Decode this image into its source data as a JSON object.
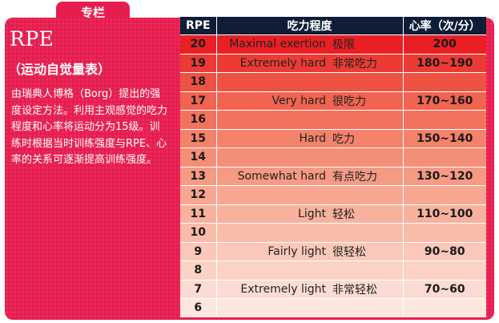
{
  "tab_label": "专栏",
  "title": "RPE",
  "subtitle": "（运动自觉量表）",
  "description": "由瑞典人博格（Borg）提出的强度设定方法。利用主观感觉的吃力程度和心率将运动分为15级。训练时根据当时训练强度与RPE、心率的关系可逐渐提高训练强度。",
  "table": {
    "headers": {
      "rpe": "RPE",
      "effort": "吃力程度",
      "heart_rate": "心率（次/分）"
    },
    "rows": [
      {
        "rpe": "20",
        "en": "Maximal exertion",
        "cn": "极限",
        "hr": "200",
        "color": "#ea1f24"
      },
      {
        "rpe": "19",
        "en": "Extremely hard",
        "cn": "非常吃力",
        "hr": "180~190",
        "color": "#ec3b34"
      },
      {
        "rpe": "18",
        "en": "",
        "cn": "",
        "hr": "",
        "color": "#ee5243"
      },
      {
        "rpe": "17",
        "en": "Very hard",
        "cn": "很吃力",
        "hr": "170~160",
        "color": "#f06450"
      },
      {
        "rpe": "16",
        "en": "",
        "cn": "",
        "hr": "",
        "color": "#f2735d"
      },
      {
        "rpe": "15",
        "en": "Hard",
        "cn": "吃力",
        "hr": "150~140",
        "color": "#f4816a"
      },
      {
        "rpe": "14",
        "en": "",
        "cn": "",
        "hr": "",
        "color": "#f58e77"
      },
      {
        "rpe": "13",
        "en": "Somewhat hard",
        "cn": "有点吃力",
        "hr": "130~120",
        "color": "#f69a84"
      },
      {
        "rpe": "12",
        "en": "",
        "cn": "",
        "hr": "",
        "color": "#f7a691"
      },
      {
        "rpe": "11",
        "en": "Light",
        "cn": "轻松",
        "hr": "110~100",
        "color": "#f8b19d"
      },
      {
        "rpe": "10",
        "en": "",
        "cn": "",
        "hr": "",
        "color": "#f9bcaa"
      },
      {
        "rpe": "9",
        "en": "Fairly light",
        "cn": "很轻松",
        "hr": "90~80",
        "color": "#fac7b8"
      },
      {
        "rpe": "8",
        "en": "",
        "cn": "",
        "hr": "",
        "color": "#fbd2c5"
      },
      {
        "rpe": "7",
        "en": "Extremely light",
        "cn": "非常轻松",
        "hr": "70~60",
        "color": "#fcdcd2"
      },
      {
        "rpe": "6",
        "en": "",
        "cn": "",
        "hr": "",
        "color": "#fde6de"
      }
    ]
  }
}
